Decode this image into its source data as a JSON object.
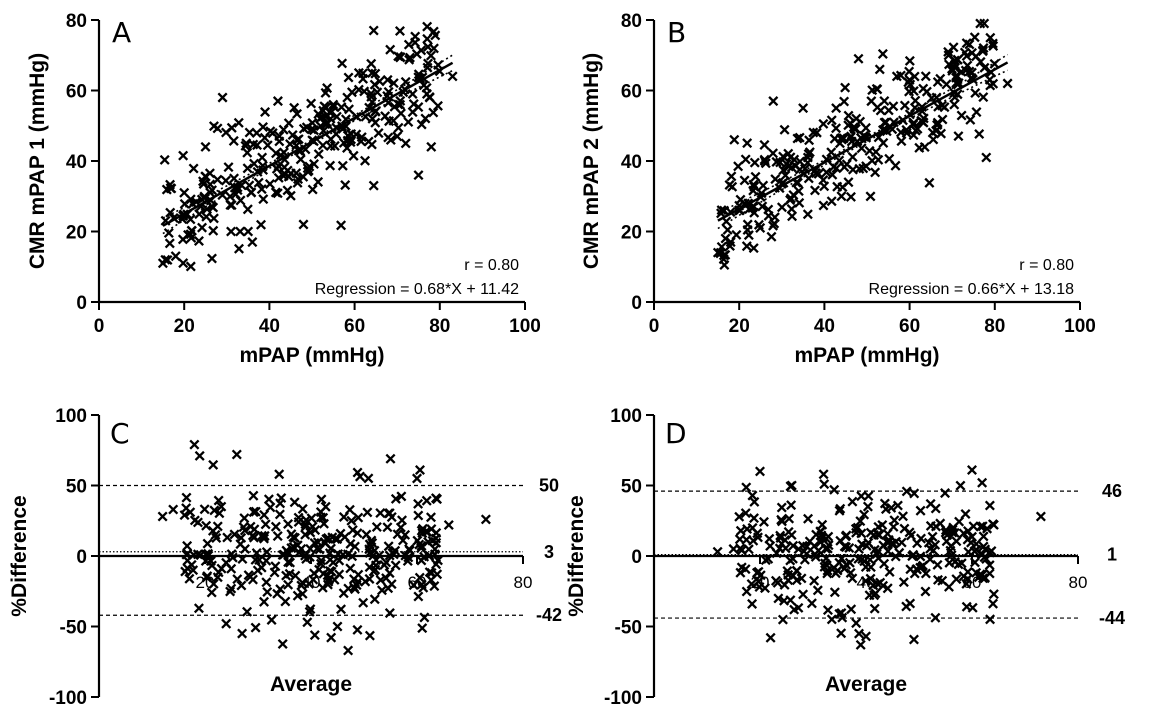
{
  "chart_data": [
    {
      "panel_letter": "A",
      "type": "scatter",
      "xlabel": "mPAP (mmHg)",
      "ylabel": "CMR mPAP 1 (mmHg)",
      "xlim": [
        0,
        100
      ],
      "ylim": [
        0,
        80
      ],
      "x_ticks": [
        "0",
        "20",
        "40",
        "60",
        "80",
        "100"
      ],
      "y_ticks": [
        "0",
        "20",
        "40",
        "60",
        "80"
      ],
      "annotations": [
        "r = 0.80",
        "Regression = 0.68*X + 11.42"
      ],
      "regression": {
        "slope": 0.68,
        "intercept": 11.42,
        "x_range": [
          15,
          83
        ]
      },
      "generated_points": {
        "count": 290,
        "seed": 11,
        "x_range": [
          15,
          80
        ],
        "slope": 0.68,
        "intercept": 11.42,
        "noise": 7.5
      },
      "points": [
        [
          83,
          64
        ],
        [
          78,
          44
        ],
        [
          75,
          36
        ],
        [
          61,
          65
        ],
        [
          48,
          22
        ],
        [
          42,
          57
        ],
        [
          29,
          58
        ],
        [
          15,
          11
        ],
        [
          18,
          13
        ],
        [
          36,
          17
        ],
        [
          35,
          20
        ],
        [
          49,
          37
        ],
        [
          70,
          47
        ],
        [
          72,
          45
        ],
        [
          55,
          56
        ],
        [
          20,
          31
        ],
        [
          25,
          44
        ],
        [
          31,
          20
        ]
      ]
    },
    {
      "panel_letter": "B",
      "type": "scatter",
      "xlabel": "mPAP (mmHg)",
      "ylabel": "CMR mPAP 2 (mmHg)",
      "xlim": [
        0,
        100
      ],
      "ylim": [
        0,
        80
      ],
      "x_ticks": [
        "0",
        "20",
        "40",
        "60",
        "80",
        "100"
      ],
      "y_ticks": [
        "0",
        "20",
        "40",
        "60",
        "80"
      ],
      "annotations": [
        "r = 0.80",
        "Regression = 0.66*X + 13.18"
      ],
      "regression": {
        "slope": 0.66,
        "intercept": 13.18,
        "x_range": [
          15,
          83
        ]
      },
      "generated_points": {
        "count": 290,
        "seed": 23,
        "x_range": [
          15,
          80
        ],
        "slope": 0.66,
        "intercept": 13.18,
        "noise": 7.5
      },
      "points": [
        [
          48,
          69
        ],
        [
          53,
          66
        ],
        [
          83,
          62
        ],
        [
          78,
          41
        ],
        [
          15,
          14
        ],
        [
          18,
          17
        ],
        [
          28,
          57
        ],
        [
          35,
          55
        ],
        [
          57,
          64
        ],
        [
          60,
          63
        ],
        [
          22,
          22
        ],
        [
          26,
          40
        ],
        [
          44,
          30
        ]
      ]
    },
    {
      "panel_letter": "C",
      "type": "scatter",
      "xlabel": "Average",
      "ylabel": "%Difference",
      "xlim": [
        0,
        80
      ],
      "ylim": [
        -100,
        100
      ],
      "x_ticks": [
        "20",
        "40",
        "60",
        "80"
      ],
      "y_ticks": [
        "-100",
        "-50",
        "0",
        "50",
        "100"
      ],
      "reference_lines": [
        {
          "value": 50,
          "label": "50",
          "style": "dashed"
        },
        {
          "value": 3,
          "label": "3",
          "style": "dotted"
        },
        {
          "value": -42,
          "label": "-42",
          "style": "dashed"
        }
      ],
      "generated_points": {
        "count": 310,
        "seed": 37,
        "x_range": [
          16,
          64
        ],
        "mean": 3,
        "sd": 22
      },
      "points": [
        [
          18,
          79
        ],
        [
          19,
          71
        ],
        [
          26,
          72
        ],
        [
          34,
          58
        ],
        [
          55,
          69
        ],
        [
          60,
          55
        ],
        [
          73,
          26
        ],
        [
          47,
          -67
        ],
        [
          45,
          -50
        ],
        [
          27,
          -55
        ],
        [
          24,
          -48
        ],
        [
          12,
          28
        ],
        [
          14,
          33
        ],
        [
          66,
          22
        ]
      ]
    },
    {
      "panel_letter": "D",
      "type": "scatter",
      "xlabel": "Average",
      "ylabel": "%Difference",
      "xlim": [
        0,
        80
      ],
      "ylim": [
        -100,
        100
      ],
      "x_ticks": [
        "20",
        "40",
        "60",
        "80"
      ],
      "y_ticks": [
        "-100",
        "-50",
        "0",
        "50",
        "100"
      ],
      "reference_lines": [
        {
          "value": 46,
          "label": "46",
          "style": "dashed"
        },
        {
          "value": 1,
          "label": "1",
          "style": "dotted"
        },
        {
          "value": -44,
          "label": "-44",
          "style": "dashed"
        }
      ],
      "generated_points": {
        "count": 300,
        "seed": 53,
        "x_range": [
          16,
          65
        ],
        "mean": 1,
        "sd": 21
      },
      "points": [
        [
          60,
          61
        ],
        [
          20,
          60
        ],
        [
          32,
          58
        ],
        [
          73,
          28
        ],
        [
          15,
          5
        ],
        [
          12,
          3
        ],
        [
          39,
          -63
        ],
        [
          40,
          -57
        ],
        [
          22,
          -58
        ],
        [
          59,
          -36
        ],
        [
          26,
          50
        ],
        [
          34,
          47
        ]
      ]
    }
  ]
}
